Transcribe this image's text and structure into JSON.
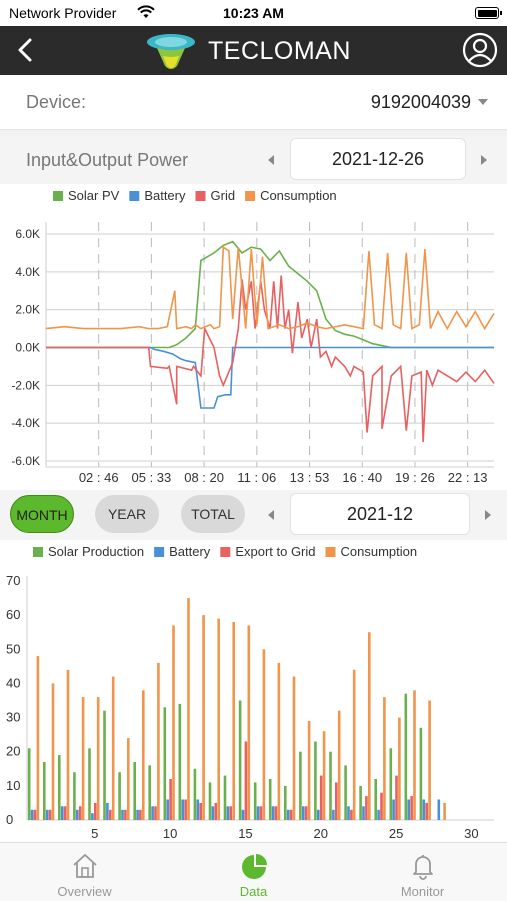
{
  "status_bar": {
    "carrier": "Network Provider",
    "time": "10:23 AM"
  },
  "header": {
    "brand": "TECLOMAN"
  },
  "device": {
    "label": "Device:",
    "value": "9192004039"
  },
  "power_section": {
    "label": "Input&Output Power",
    "date": "2021-12-26"
  },
  "period": {
    "tabs": [
      "MONTH",
      "YEAR",
      "TOTAL"
    ],
    "active": "MONTH",
    "date": "2021-12"
  },
  "tabbar": {
    "items": [
      {
        "label": "Overview",
        "icon": "house-icon"
      },
      {
        "label": "Data",
        "icon": "pie-chart-icon"
      },
      {
        "label": "Monitor",
        "icon": "bell-icon"
      }
    ],
    "active": "Data"
  },
  "colors": {
    "solar": "#6ab04c",
    "battery": "#4a90d9",
    "grid": "#e86060",
    "consumption": "#f0954a",
    "accent": "#5cb82c",
    "header": "#2b2b2b"
  },
  "chart_data": [
    {
      "type": "line",
      "legend": [
        "Solar PV",
        "Battery",
        "Grid",
        "Consumption"
      ],
      "x_ticks": [
        "02 : 46",
        "05 : 33",
        "08 : 20",
        "11 : 06",
        "13 : 53",
        "16 : 40",
        "19 : 26",
        "22 : 13"
      ],
      "y_ticks": [
        "6.0K",
        "4.0K",
        "2.0K",
        "0.0K",
        "-2.0K",
        "-4.0K",
        "-6.0K"
      ],
      "ylim": [
        -6000,
        6000
      ],
      "x_hours_range": [
        0,
        24
      ],
      "series": [
        {
          "name": "Solar PV",
          "points": [
            [
              0,
              0
            ],
            [
              6.6,
              0
            ],
            [
              7,
              150
            ],
            [
              7.5,
              500
            ],
            [
              8,
              1000
            ],
            [
              8.3,
              4600
            ],
            [
              9,
              5000
            ],
            [
              9.5,
              5400
            ],
            [
              10,
              5600
            ],
            [
              10.5,
              5000
            ],
            [
              11,
              5300
            ],
            [
              11.5,
              5200
            ],
            [
              12,
              4600
            ],
            [
              12.5,
              5100
            ],
            [
              13,
              4300
            ],
            [
              13.5,
              3900
            ],
            [
              14,
              3500
            ],
            [
              14.5,
              3000
            ],
            [
              15,
              1500
            ],
            [
              15.5,
              900
            ],
            [
              16,
              700
            ],
            [
              16.5,
              600
            ],
            [
              17,
              400
            ],
            [
              17.5,
              200
            ],
            [
              18,
              100
            ],
            [
              18.5,
              0
            ],
            [
              24,
              0
            ]
          ]
        },
        {
          "name": "Battery",
          "points": [
            [
              0,
              0
            ],
            [
              5.6,
              0
            ],
            [
              5.8,
              -100
            ],
            [
              6.3,
              -200
            ],
            [
              6.8,
              -350
            ],
            [
              7.2,
              -600
            ],
            [
              7.5,
              -700
            ],
            [
              8,
              -800
            ],
            [
              8.3,
              -3200
            ],
            [
              9,
              -3200
            ],
            [
              9.2,
              -2600
            ],
            [
              9.6,
              -2500
            ],
            [
              9.9,
              -2500
            ],
            [
              10,
              0
            ],
            [
              24,
              0
            ]
          ]
        },
        {
          "name": "Grid",
          "points": [
            [
              0,
              0
            ],
            [
              5.5,
              0
            ],
            [
              5.6,
              -1000
            ],
            [
              6.5,
              -1100
            ],
            [
              6.6,
              -1000
            ],
            [
              7,
              -3000
            ],
            [
              7,
              -1000
            ],
            [
              7.8,
              -1200
            ],
            [
              7.9,
              -1000
            ],
            [
              8.3,
              -1500
            ],
            [
              8.5,
              1000
            ],
            [
              9,
              0
            ],
            [
              9.3,
              -1500
            ],
            [
              9.5,
              -2000
            ],
            [
              10,
              -800
            ],
            [
              10.3,
              1000
            ],
            [
              10.5,
              3600
            ],
            [
              10.7,
              2000
            ],
            [
              11,
              3500
            ],
            [
              11.2,
              1000
            ],
            [
              11.5,
              3500
            ],
            [
              11.7,
              2000
            ],
            [
              12,
              1000
            ],
            [
              12.2,
              3500
            ],
            [
              12.4,
              1000
            ],
            [
              12.6,
              3800
            ],
            [
              12.8,
              1000
            ],
            [
              13,
              2000
            ],
            [
              13.2,
              -300
            ],
            [
              13.5,
              2400
            ],
            [
              13.7,
              500
            ],
            [
              14,
              1500
            ],
            [
              14.2,
              0
            ],
            [
              14.5,
              1500
            ],
            [
              14.7,
              -500
            ],
            [
              15,
              -200
            ],
            [
              15.3,
              -1000
            ],
            [
              15.5,
              -500
            ],
            [
              16,
              -1000
            ],
            [
              16.3,
              -1500
            ],
            [
              16.5,
              -1000
            ],
            [
              17,
              -1300
            ],
            [
              17.2,
              -4500
            ],
            [
              17.5,
              -1500
            ],
            [
              18,
              -1000
            ],
            [
              18,
              -4300
            ],
            [
              18.5,
              -1500
            ],
            [
              19,
              -1000
            ],
            [
              19.3,
              -4400
            ],
            [
              19.6,
              -1500
            ],
            [
              20.1,
              -1300
            ],
            [
              20.2,
              -5000
            ],
            [
              20.4,
              -1200
            ],
            [
              20.7,
              -2000
            ],
            [
              21,
              -1200
            ],
            [
              22,
              -1800
            ],
            [
              22.5,
              -1300
            ],
            [
              23,
              -1800
            ],
            [
              23.5,
              -1200
            ],
            [
              24,
              -1900
            ]
          ]
        },
        {
          "name": "Consumption",
          "points": [
            [
              0,
              1000
            ],
            [
              1,
              1100
            ],
            [
              2,
              1000
            ],
            [
              3,
              1000
            ],
            [
              4,
              1000
            ],
            [
              5,
              1100
            ],
            [
              5.5,
              1000
            ],
            [
              6,
              1000
            ],
            [
              6.5,
              1100
            ],
            [
              6.9,
              3000
            ],
            [
              7,
              1000
            ],
            [
              7.5,
              1100
            ],
            [
              7.8,
              1000
            ],
            [
              8,
              1200
            ],
            [
              8.3,
              1000
            ],
            [
              8.8,
              1200
            ],
            [
              9,
              1000
            ],
            [
              9.3,
              1100
            ],
            [
              9.5,
              5300
            ],
            [
              9.8,
              5100
            ],
            [
              10,
              1500
            ],
            [
              10.3,
              5300
            ],
            [
              10.7,
              1000
            ],
            [
              11,
              5200
            ],
            [
              11.3,
              1200
            ],
            [
              11.6,
              4800
            ],
            [
              11.9,
              1000
            ],
            [
              12.5,
              1200
            ],
            [
              13,
              1000
            ],
            [
              13.5,
              1100
            ],
            [
              14,
              1300
            ],
            [
              14.5,
              1100
            ],
            [
              15,
              1000
            ],
            [
              16,
              1200
            ],
            [
              16.5,
              1100
            ],
            [
              17,
              1000
            ],
            [
              17.3,
              5100
            ],
            [
              17.6,
              1200
            ],
            [
              18,
              1000
            ],
            [
              18.3,
              5000
            ],
            [
              18.6,
              1200
            ],
            [
              19,
              1000
            ],
            [
              19.3,
              5000
            ],
            [
              19.6,
              1000
            ],
            [
              20,
              1200
            ],
            [
              20.3,
              5200
            ],
            [
              20.6,
              1000
            ],
            [
              21,
              1900
            ],
            [
              21.5,
              1000
            ],
            [
              22,
              1900
            ],
            [
              22.5,
              1100
            ],
            [
              23,
              1900
            ],
            [
              23.5,
              1000
            ],
            [
              24,
              1800
            ]
          ]
        }
      ]
    },
    {
      "type": "bar",
      "legend": [
        "Solar Production",
        "Battery",
        "Export to Grid",
        "Consumption"
      ],
      "categories": [
        1,
        2,
        3,
        4,
        5,
        6,
        7,
        8,
        9,
        10,
        11,
        12,
        13,
        14,
        15,
        16,
        17,
        18,
        19,
        20,
        21,
        22,
        23,
        24,
        25,
        26,
        27,
        28,
        29,
        30,
        31
      ],
      "x_ticks": [
        5,
        10,
        15,
        20,
        25,
        30
      ],
      "ylim": [
        0,
        70
      ],
      "y_ticks": [
        0,
        10,
        20,
        30,
        40,
        50,
        60,
        70
      ],
      "series": [
        {
          "name": "Solar Production",
          "values": [
            21,
            17,
            19,
            14,
            21,
            32,
            14,
            17,
            16,
            33,
            34,
            15,
            11,
            13,
            35,
            11,
            12,
            10,
            20,
            23,
            20,
            16,
            10,
            12,
            21,
            37,
            27,
            0,
            0,
            0,
            0
          ]
        },
        {
          "name": "Battery",
          "values": [
            3,
            3,
            4,
            3,
            2,
            5,
            3,
            3,
            4,
            6,
            6,
            6,
            4,
            4,
            3,
            4,
            4,
            3,
            4,
            3,
            3,
            4,
            4,
            3,
            6,
            6,
            6,
            6,
            0,
            0,
            0
          ]
        },
        {
          "name": "Export to Grid",
          "values": [
            3,
            3,
            4,
            4,
            5,
            3,
            3,
            3,
            4,
            12,
            6,
            5,
            5,
            4,
            23,
            4,
            4,
            3,
            4,
            13,
            11,
            3,
            7,
            8,
            13,
            7,
            5,
            0,
            0,
            0,
            0
          ]
        },
        {
          "name": "Consumption",
          "values": [
            48,
            40,
            44,
            36,
            36,
            42,
            24,
            38,
            46,
            57,
            65,
            60,
            59,
            58,
            57,
            50,
            46,
            42,
            29,
            26,
            32,
            44,
            55,
            36,
            30,
            38,
            35,
            5,
            0,
            0,
            0
          ]
        }
      ]
    }
  ]
}
